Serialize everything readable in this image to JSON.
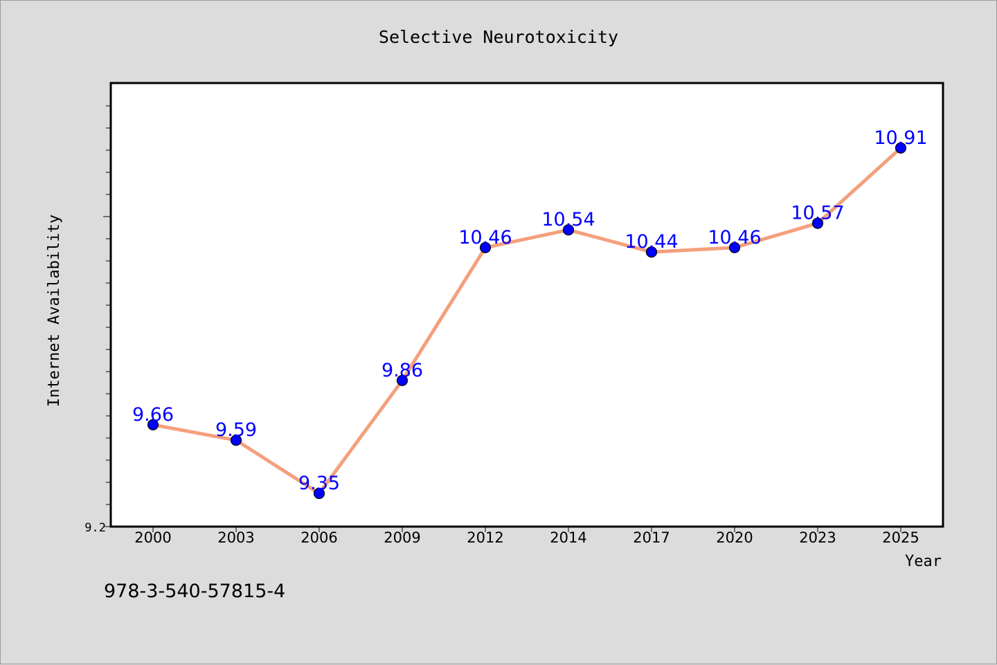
{
  "chart_data": {
    "type": "line",
    "title": "Selective Neurotoxicity",
    "xlabel": "Year",
    "ylabel": "Internet Availability",
    "categories": [
      "2000",
      "2003",
      "2006",
      "2009",
      "2012",
      "2014",
      "2017",
      "2020",
      "2023",
      "2025"
    ],
    "series": [
      {
        "values": [
          9.66,
          9.59,
          9.35,
          9.86,
          10.46,
          10.54,
          10.44,
          10.46,
          10.57,
          10.91
        ],
        "labels": [
          "9.66",
          "9.59",
          "9.35",
          "9.86",
          "10.46",
          "10.54",
          "10.44",
          "10.46",
          "10.57",
          "10.91"
        ]
      }
    ],
    "ylim": [
      9.2,
      11.2
    ],
    "ytick_labels": [
      "9.2"
    ],
    "grid": false,
    "colors": {
      "line": "#f4a07c",
      "marker": "#0000ff",
      "marker_edge": "#000000",
      "data_label": "#0000ff",
      "plot_background": "#ffffff",
      "figure_background": "#dcdcdc"
    }
  },
  "footer": {
    "code": "978-3-540-57815-4"
  }
}
